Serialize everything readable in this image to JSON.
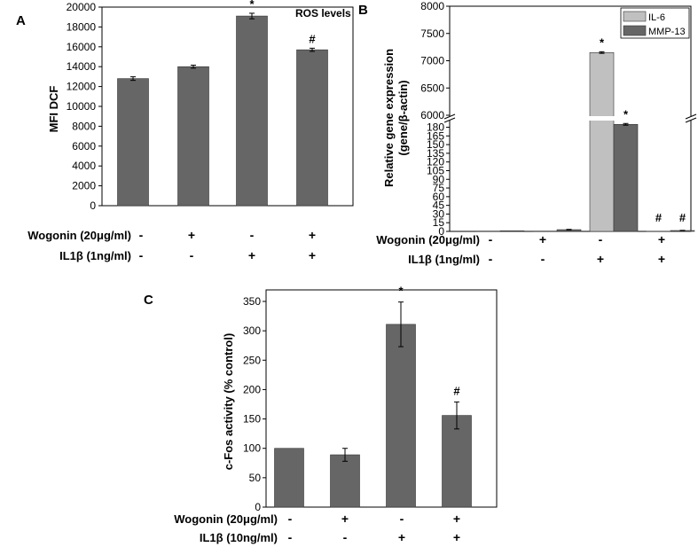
{
  "colors": {
    "bar_dark": "#666666",
    "bar_light": "#c0c0c0",
    "axis": "#000000"
  },
  "chart_data": [
    {
      "panel": "A",
      "type": "bar",
      "title": "ROS levels",
      "ylabel": "MFI DCF",
      "ylim": [
        0,
        20000
      ],
      "yticks": [
        "0",
        "2000",
        "4000",
        "6000",
        "8000",
        "10000",
        "12000",
        "14000",
        "16000",
        "18000",
        "20000"
      ],
      "values": [
        12800,
        14000,
        19100,
        15700
      ],
      "errors": [
        180,
        150,
        280,
        160
      ],
      "marks": [
        "",
        "",
        "*",
        "#"
      ],
      "conditions": [
        {
          "label": "Wogonin (20μg/ml)",
          "symbols": [
            "-",
            "+",
            "-",
            "+"
          ]
        },
        {
          "label": "IL1β (1ng/ml)",
          "symbols": [
            "-",
            "-",
            "+",
            "+"
          ]
        }
      ]
    },
    {
      "panel": "B",
      "type": "bar",
      "ylabel": "Relative gene expression (gene/β-actin)",
      "ylabel_lines": [
        "Relative gene expression",
        "(gene/β-actin)"
      ],
      "axis_break": {
        "lower": [
          0,
          190
        ],
        "upper": [
          6000,
          8000
        ]
      },
      "yticks_lower": [
        "0",
        "15",
        "30",
        "45",
        "60",
        "75",
        "90",
        "105",
        "120",
        "135",
        "150",
        "165",
        "180"
      ],
      "yticks_upper": [
        "6000",
        "6500",
        "7000",
        "7500",
        "8000"
      ],
      "series": [
        {
          "name": "IL-6",
          "values": [
            0.5,
            0.5,
            7150,
            0.3
          ],
          "errors": [
            0,
            0,
            15,
            0
          ],
          "marks": [
            "",
            "",
            "*",
            "#"
          ]
        },
        {
          "name": "MMP-13",
          "values": [
            1,
            3,
            185,
            1.5
          ],
          "errors": [
            0,
            0.5,
            1.5,
            0.3
          ],
          "marks": [
            "",
            "",
            "*",
            "#"
          ]
        }
      ],
      "conditions": [
        {
          "label": "Wogonin (20μg/ml)",
          "symbols": [
            "-",
            "+",
            "-",
            "+"
          ]
        },
        {
          "label": "IL1β (1ng/ml)",
          "symbols": [
            "-",
            "-",
            "+",
            "+"
          ]
        }
      ]
    },
    {
      "panel": "C",
      "type": "bar",
      "ylabel": "c-Fos activity (% control)",
      "ylim": [
        0,
        350
      ],
      "yticks": [
        "0",
        "50",
        "100",
        "150",
        "200",
        "250",
        "300",
        "350"
      ],
      "values": [
        100,
        89,
        311,
        156
      ],
      "errors": [
        0,
        11,
        38,
        23
      ],
      "marks": [
        "",
        "",
        "*",
        "#"
      ],
      "conditions": [
        {
          "label": "Wogonin (20μg/ml)",
          "symbols": [
            "-",
            "+",
            "-",
            "+"
          ]
        },
        {
          "label": "IL1β (10ng/ml)",
          "symbols": [
            "-",
            "-",
            "+",
            "+"
          ]
        }
      ]
    }
  ]
}
